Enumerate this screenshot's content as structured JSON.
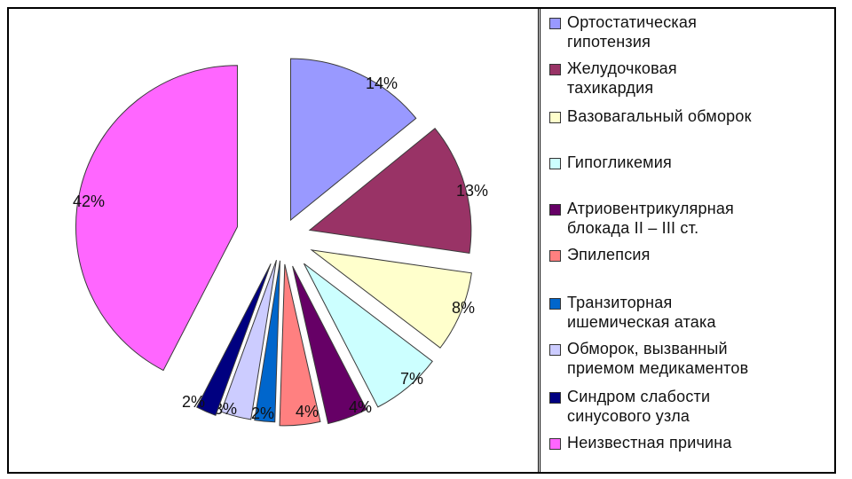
{
  "chart_data": {
    "type": "pie",
    "exploded": true,
    "legend_position": "right",
    "slices": [
      {
        "label": "Ортостатическая гипотензия",
        "value": 14,
        "display": "14%",
        "color": "#9999ff"
      },
      {
        "label": "Желудочковая тахикардия",
        "value": 13,
        "display": "13%",
        "color": "#993366"
      },
      {
        "label": "Вазовагальный обморок",
        "value": 8,
        "display": "8%",
        "color": "#ffffcc"
      },
      {
        "label": "Гипогликемия",
        "value": 7,
        "display": "7%",
        "color": "#ccffff"
      },
      {
        "label": "Атриовентрикулярная блокада II – III ст.",
        "value": 4,
        "display": "4%",
        "color": "#660066"
      },
      {
        "label": "Эпилепсия",
        "value": 4,
        "display": "4%",
        "color": "#ff8080"
      },
      {
        "label": "Транзиторная ишемическая атака",
        "value": 2,
        "display": "2%",
        "color": "#0066cc"
      },
      {
        "label": "Обморок, вызванный приемом медикаментов",
        "value": 3,
        "display": "3%",
        "color": "#ccccff"
      },
      {
        "label": "Синдром слабости синусового узла",
        "value": 2,
        "display": "2%",
        "color": "#000080"
      },
      {
        "label": "Неизвестная причина",
        "value": 42,
        "display": "42%",
        "color": "#ff66ff"
      }
    ]
  },
  "legend": {
    "items": [
      {
        "lines": [
          "Ортостатическая",
          "гипотензия"
        ],
        "color": "#9999ff"
      },
      {
        "lines": [
          "Желудочковая",
          "тахикардия"
        ],
        "color": "#993366"
      },
      {
        "lines": [
          "Вазовагальный обморок"
        ],
        "color": "#ffffcc"
      },
      {
        "lines": [
          "Гипогликемия"
        ],
        "color": "#ccffff"
      },
      {
        "lines": [
          "Атриовентрикулярная",
          "блокада II – III ст."
        ],
        "color": "#660066"
      },
      {
        "lines": [
          "Эпилепсия"
        ],
        "color": "#ff8080"
      },
      {
        "lines": [
          "Транзиторная",
          "ишемическая атака"
        ],
        "color": "#0066cc"
      },
      {
        "lines": [
          "Обморок, вызванный",
          "приемом медикаментов"
        ],
        "color": "#ccccff"
      },
      {
        "lines": [
          "Синдром слабости",
          "синусового узла"
        ],
        "color": "#000080"
      },
      {
        "lines": [
          "Неизвестная причина"
        ],
        "color": "#ff66ff"
      }
    ]
  }
}
